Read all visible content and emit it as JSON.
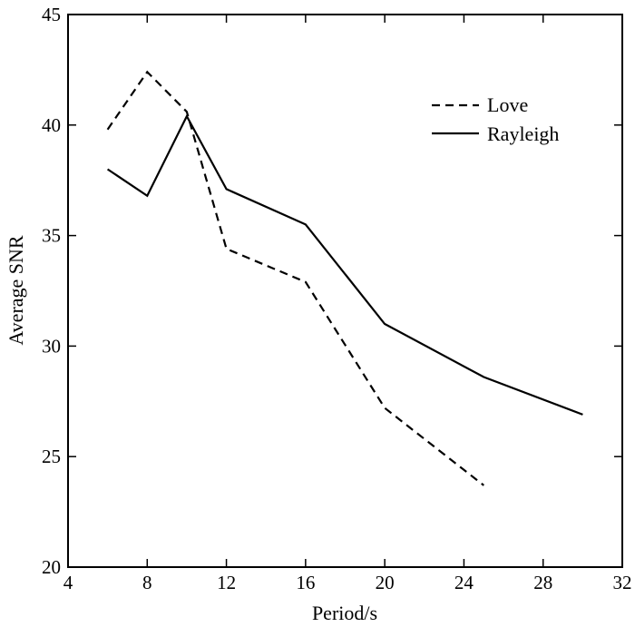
{
  "chart_data": {
    "type": "line",
    "title": "",
    "xlabel": "Period/s",
    "ylabel": "Average SNR",
    "xlim": [
      4,
      32
    ],
    "ylim": [
      20,
      45
    ],
    "xticks": [
      4,
      8,
      12,
      16,
      20,
      24,
      28,
      32
    ],
    "yticks": [
      20,
      25,
      30,
      35,
      40,
      45
    ],
    "grid": false,
    "legend_position": "top-right",
    "series": [
      {
        "name": "Love",
        "style": "dashed",
        "color": "#000000",
        "x": [
          6,
          8,
          10,
          12,
          16,
          20,
          25
        ],
        "y": [
          39.8,
          42.4,
          40.6,
          34.4,
          32.9,
          27.2,
          23.7
        ]
      },
      {
        "name": "Rayleigh",
        "style": "solid",
        "color": "#000000",
        "x": [
          6,
          8,
          10,
          12,
          16,
          20,
          25,
          30
        ],
        "y": [
          38.0,
          36.8,
          40.4,
          37.1,
          35.5,
          31.0,
          28.6,
          26.9
        ]
      }
    ]
  }
}
